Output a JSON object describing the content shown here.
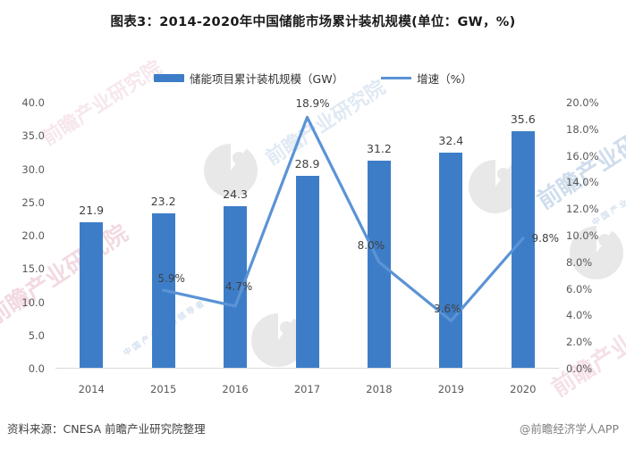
{
  "page": {
    "title": "图表3：2014-2020年中国储能市场累计装机规模(单位：GW，%)",
    "source": "资料来源：CNESA 前瞻产业研究院整理",
    "credit": "@前瞻经济学人APP"
  },
  "colors": {
    "bar": "#3d7dc8",
    "line": "#5b93d5",
    "bar_label": "#404040",
    "axis_text": "#595959",
    "baseline": "#d9d9d9",
    "watermark_blue": "#a9c2de",
    "watermark_pink": "#e9bcc9",
    "watermark_gray": "#d6d6d6"
  },
  "chart_data": {
    "type": "bar+line",
    "title": "图表3：2014-2020年中国储能市场累计装机规模(单位：GW，%)",
    "categories": [
      "2014",
      "2015",
      "2016",
      "2017",
      "2018",
      "2019",
      "2020"
    ],
    "series": [
      {
        "name": "储能项目累计装机规模（GW）",
        "type": "bar",
        "axis": "left",
        "values": [
          21.9,
          23.2,
          24.3,
          28.9,
          31.2,
          32.4,
          35.6
        ],
        "labels": [
          "21.9",
          "23.2",
          "24.3",
          "28.9",
          "31.2",
          "32.4",
          "35.6"
        ]
      },
      {
        "name": "增速（%）",
        "type": "line",
        "axis": "right",
        "values": [
          null,
          5.9,
          4.7,
          18.9,
          8.0,
          3.6,
          9.8
        ],
        "labels": [
          null,
          "5.9%",
          "4.7%",
          "18.9%",
          "8.0%",
          "3.6%",
          "9.8%"
        ]
      }
    ],
    "left_axis": {
      "min": 0,
      "max": 40,
      "ticks": [
        "0.0",
        "5.0",
        "10.0",
        "15.0",
        "20.0",
        "25.0",
        "30.0",
        "35.0",
        "40.0"
      ]
    },
    "right_axis": {
      "min": 0,
      "max": 20,
      "ticks": [
        "0.0%",
        "2.0%",
        "4.0%",
        "6.0%",
        "8.0%",
        "10.0%",
        "12.0%",
        "14.0%",
        "16.0%",
        "18.0%",
        "20.0%"
      ]
    },
    "legend_position": "top",
    "grid": false
  },
  "watermark": {
    "brand_text": "前瞻产业研究院",
    "brand_subtext": "中国产业咨询领导者"
  }
}
